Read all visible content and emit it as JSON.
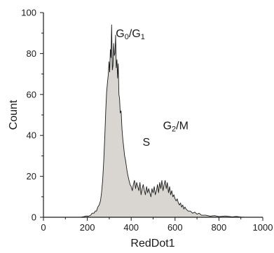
{
  "chart_data": {
    "type": "area",
    "title": "",
    "xlabel": "RedDot1",
    "ylabel": "Count",
    "xlim": [
      0,
      1000
    ],
    "ylim": [
      0,
      100
    ],
    "xticks": [
      0,
      200,
      400,
      600,
      800,
      1000
    ],
    "yticks": [
      0,
      20,
      40,
      60,
      80,
      100
    ],
    "grid": false,
    "legend": "none",
    "fill_color": "#d9d5d0",
    "line_color": "#1a1a1a",
    "annotations": [
      {
        "base": "G",
        "sub1": "0",
        "sep": "/G",
        "sub2": "1",
        "x": 330,
        "y": 88
      },
      {
        "base": "S",
        "sub1": "",
        "sep": "",
        "sub2": "",
        "x": 452,
        "y": 35
      },
      {
        "base": "G",
        "sub1": "2",
        "sep": "/M",
        "sub2": "",
        "x": 545,
        "y": 43
      }
    ],
    "series": [
      {
        "x": [
          170,
          185,
          195,
          205,
          215,
          222,
          230,
          236,
          242,
          248,
          254,
          260,
          265,
          270,
          275,
          280,
          284,
          288,
          292,
          296,
          299,
          302,
          305,
          308,
          311,
          314,
          317,
          320,
          323,
          326,
          329,
          332,
          335,
          338,
          341,
          344,
          347,
          350,
          354,
          358,
          362,
          366,
          370,
          374,
          378,
          382,
          386,
          390,
          395,
          400,
          405,
          410,
          415,
          420,
          425,
          430,
          435,
          440,
          445,
          450,
          455,
          460,
          465,
          470,
          475,
          480,
          485,
          490,
          495,
          500,
          505,
          510,
          515,
          520,
          525,
          530,
          535,
          540,
          545,
          550,
          555,
          560,
          565,
          570,
          575,
          580,
          585,
          590,
          595,
          600,
          605,
          610,
          615,
          620,
          625,
          630,
          635,
          640,
          645,
          650,
          660,
          670,
          680,
          690,
          700,
          710,
          720,
          740,
          760,
          780,
          800,
          830,
          860,
          880,
          900,
          920
        ],
        "y": [
          0,
          0.3,
          0.6,
          0.5,
          1,
          2,
          2,
          3,
          3,
          5,
          6,
          8,
          12,
          18,
          28,
          40,
          52,
          61,
          66,
          70,
          76,
          71,
          82,
          78,
          94,
          72,
          74,
          85,
          79,
          80,
          89,
          73,
          77,
          68,
          75,
          60,
          58,
          51,
          52,
          43,
          38,
          34,
          30,
          28,
          25,
          22,
          20,
          18,
          16,
          15,
          13,
          16,
          18,
          14,
          17,
          15,
          13,
          17,
          11,
          14,
          16,
          13,
          11,
          15,
          12,
          14,
          12,
          10,
          14,
          12,
          15,
          11,
          13,
          16,
          12,
          17,
          14,
          18,
          13,
          16,
          18,
          14,
          17,
          12,
          15,
          11,
          13,
          10,
          11,
          9,
          8,
          9,
          7,
          6,
          7,
          5,
          6,
          4,
          5,
          4,
          3,
          3,
          2,
          2.5,
          1.5,
          2,
          1,
          1,
          0.5,
          0.8,
          0.3,
          0.6,
          0.2,
          0.4,
          0.1,
          0
        ]
      }
    ]
  }
}
